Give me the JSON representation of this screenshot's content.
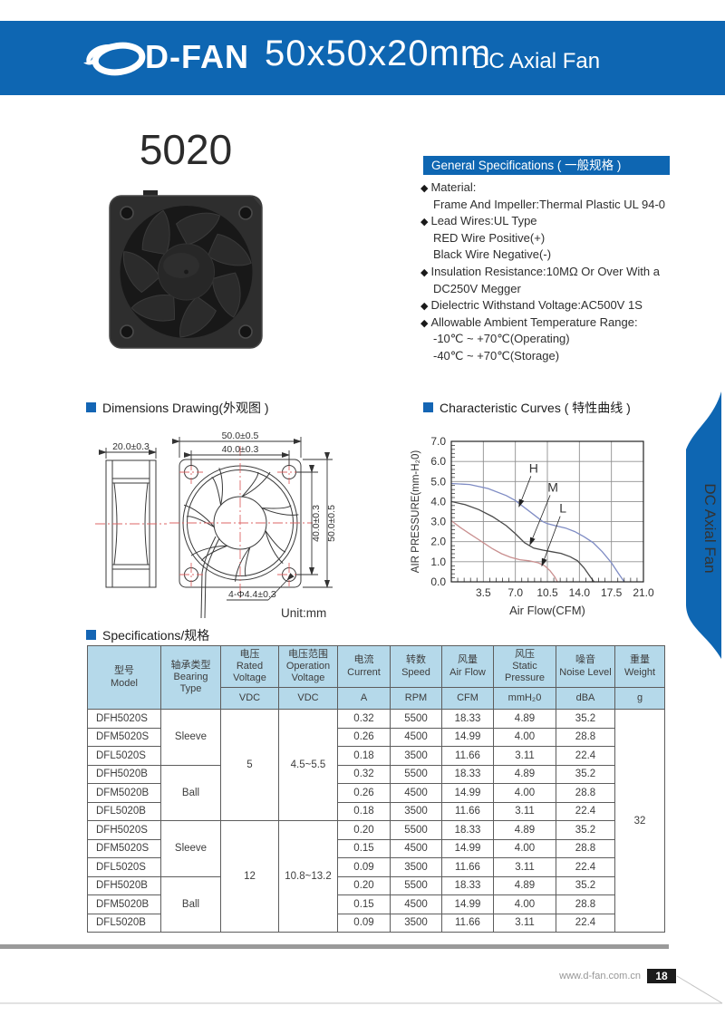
{
  "header": {
    "brand": "D-FAN",
    "size_title": "50x50x20mm",
    "product_type": "DC Axial Fan"
  },
  "model_title": "5020",
  "side_tab_label": "DC Axial Fan",
  "sections": {
    "general": "General Specifications ( 一般规格 )",
    "dimensions": "Dimensions Drawing(外观图 )",
    "curves": "Characteristic Curves ( 特性曲线 )",
    "specs": "Specifications/规格"
  },
  "general_specs": [
    {
      "bullet": true,
      "text": "Material:"
    },
    {
      "bullet": false,
      "text": "Frame And Impeller:Thermal Plastic UL 94-0"
    },
    {
      "bullet": true,
      "text": "Lead Wires:UL Type"
    },
    {
      "bullet": false,
      "text": "RED Wire Positive(+)"
    },
    {
      "bullet": false,
      "text": "Black Wire Negative(-)"
    },
    {
      "bullet": true,
      "text": "Insulation Resistance:10MΩ Or Over With a"
    },
    {
      "bullet": false,
      "text": "DC250V Megger"
    },
    {
      "bullet": true,
      "text": "Dielectric Withstand Voltage:AC500V 1S"
    },
    {
      "bullet": true,
      "text": "Allowable Ambient Temperature Range:"
    },
    {
      "bullet": false,
      "text": "-10℃ ~ +70℃(Operating)"
    },
    {
      "bullet": false,
      "text": "-40℃ ~ +70℃(Storage)"
    }
  ],
  "dimensions": {
    "depth": "20.0±0.3",
    "width_outer": "50.0±0.5",
    "width_holes": "40.0±0.3",
    "height_holes": "40.0±0.3",
    "height_outer": "50.0±0.5",
    "hole_callout": "4-Φ4.4±0.3",
    "unit": "Unit:mm"
  },
  "chart_data": {
    "type": "line",
    "title": "Characteristic Curves ( 特性曲线 )",
    "xlabel": "Air  Flow(CFM)",
    "ylabel": "AIR PRESSURE(mm-H₂0)",
    "xlim": [
      0,
      21
    ],
    "ylim": [
      0,
      7
    ],
    "xticks": [
      3.5,
      7.0,
      10.5,
      14.0,
      17.5,
      21.0
    ],
    "yticks": [
      0,
      1,
      2,
      3,
      4,
      5,
      6,
      7
    ],
    "grid": true,
    "legend_position": "inline-arrows",
    "series": [
      {
        "name": "H",
        "color": "#7f8cc4",
        "points": [
          [
            0,
            4.9
          ],
          [
            2,
            4.85
          ],
          [
            4,
            4.65
          ],
          [
            6,
            4.3
          ],
          [
            7,
            4.05
          ],
          [
            8,
            3.7
          ],
          [
            9,
            3.35
          ],
          [
            10,
            3.0
          ],
          [
            10.5,
            2.9
          ],
          [
            11.5,
            2.78
          ],
          [
            12.5,
            2.68
          ],
          [
            13.5,
            2.5
          ],
          [
            14.5,
            2.25
          ],
          [
            15.5,
            1.95
          ],
          [
            16.5,
            1.5
          ],
          [
            17.5,
            0.95
          ],
          [
            18.3,
            0.4
          ],
          [
            18.9,
            0
          ]
        ]
      },
      {
        "name": "M",
        "color": "#4a4a4a",
        "points": [
          [
            0,
            4.0
          ],
          [
            1.5,
            3.85
          ],
          [
            3,
            3.6
          ],
          [
            4.5,
            3.25
          ],
          [
            6,
            2.8
          ],
          [
            7,
            2.4
          ],
          [
            8,
            1.95
          ],
          [
            9,
            1.68
          ],
          [
            10,
            1.58
          ],
          [
            11,
            1.5
          ],
          [
            12,
            1.42
          ],
          [
            13,
            1.25
          ],
          [
            13.8,
            1.05
          ],
          [
            14.5,
            0.7
          ],
          [
            15.2,
            0.25
          ],
          [
            15.6,
            0
          ]
        ]
      },
      {
        "name": "L",
        "color": "#c98f8f",
        "points": [
          [
            0,
            3.05
          ],
          [
            1,
            2.7
          ],
          [
            2,
            2.4
          ],
          [
            3,
            2.1
          ],
          [
            3.5,
            1.95
          ],
          [
            4.5,
            1.65
          ],
          [
            5.5,
            1.4
          ],
          [
            6.5,
            1.22
          ],
          [
            7.5,
            1.1
          ],
          [
            8.5,
            1.05
          ],
          [
            9.5,
            0.95
          ],
          [
            10.2,
            0.8
          ],
          [
            10.8,
            0.55
          ],
          [
            11.3,
            0.25
          ],
          [
            11.6,
            0
          ]
        ]
      }
    ],
    "labels": [
      {
        "text": "H",
        "x": 9.0,
        "y": 5.45,
        "arrow_to": [
          7.4,
          3.75
        ]
      },
      {
        "text": "M",
        "x": 11.1,
        "y": 4.5,
        "arrow_to": [
          8.6,
          1.85
        ]
      },
      {
        "text": "L",
        "x": 12.2,
        "y": 3.45,
        "arrow_to": [
          9.9,
          0.8
        ]
      }
    ]
  },
  "spec_table": {
    "headers": [
      {
        "cn": "型号",
        "en": "Model",
        "unit": ""
      },
      {
        "cn": "轴承类型",
        "en": "Bearing Type",
        "unit": ""
      },
      {
        "cn": "电压",
        "en": "Rated Voltage",
        "unit": "VDC"
      },
      {
        "cn": "电压范围",
        "en": "Operation Voltage",
        "unit": "VDC"
      },
      {
        "cn": "电流",
        "en": "Current",
        "unit": "A"
      },
      {
        "cn": "转数",
        "en": "Speed",
        "unit": "RPM"
      },
      {
        "cn": "风量",
        "en": "Air Flow",
        "unit": "CFM"
      },
      {
        "cn": "风压",
        "en": "Static Pressure",
        "unit": "mmH₂0"
      },
      {
        "cn": "噪音",
        "en": "Noise Level",
        "unit": "dBA"
      },
      {
        "cn": "重量",
        "en": "Weight",
        "unit": "g"
      }
    ],
    "voltage_groups": [
      {
        "rated": "5",
        "range": "4.5~5.5"
      },
      {
        "rated": "12",
        "range": "10.8~13.2"
      }
    ],
    "bearing_groups": [
      "Sleeve",
      "Ball",
      "Sleeve",
      "Ball"
    ],
    "weight": "32",
    "rows": [
      {
        "model": "DFH5020S",
        "current": "0.32",
        "speed": "5500",
        "airflow": "18.33",
        "pressure": "4.89",
        "noise": "35.2"
      },
      {
        "model": "DFM5020S",
        "current": "0.26",
        "speed": "4500",
        "airflow": "14.99",
        "pressure": "4.00",
        "noise": "28.8"
      },
      {
        "model": "DFL5020S",
        "current": "0.18",
        "speed": "3500",
        "airflow": "11.66",
        "pressure": "3.11",
        "noise": "22.4"
      },
      {
        "model": "DFH5020B",
        "current": "0.32",
        "speed": "5500",
        "airflow": "18.33",
        "pressure": "4.89",
        "noise": "35.2"
      },
      {
        "model": "DFM5020B",
        "current": "0.26",
        "speed": "4500",
        "airflow": "14.99",
        "pressure": "4.00",
        "noise": "28.8"
      },
      {
        "model": "DFL5020B",
        "current": "0.18",
        "speed": "3500",
        "airflow": "11.66",
        "pressure": "3.11",
        "noise": "22.4"
      },
      {
        "model": "DFH5020S",
        "current": "0.20",
        "speed": "5500",
        "airflow": "18.33",
        "pressure": "4.89",
        "noise": "35.2"
      },
      {
        "model": "DFM5020S",
        "current": "0.15",
        "speed": "4500",
        "airflow": "14.99",
        "pressure": "4.00",
        "noise": "28.8"
      },
      {
        "model": "DFL5020S",
        "current": "0.09",
        "speed": "3500",
        "airflow": "11.66",
        "pressure": "3.11",
        "noise": "22.4"
      },
      {
        "model": "DFH5020B",
        "current": "0.20",
        "speed": "5500",
        "airflow": "18.33",
        "pressure": "4.89",
        "noise": "35.2"
      },
      {
        "model": "DFM5020B",
        "current": "0.15",
        "speed": "4500",
        "airflow": "14.99",
        "pressure": "4.00",
        "noise": "28.8"
      },
      {
        "model": "DFL5020B",
        "current": "0.09",
        "speed": "3500",
        "airflow": "11.66",
        "pressure": "3.11",
        "noise": "22.4"
      }
    ]
  },
  "page": {
    "footer_url": "www.d-fan.com.cn",
    "page_number": "18"
  },
  "colors": {
    "brand_blue": "#0e66b2",
    "table_header": "#b5d9ea",
    "centerline_red": "#dd6666"
  }
}
